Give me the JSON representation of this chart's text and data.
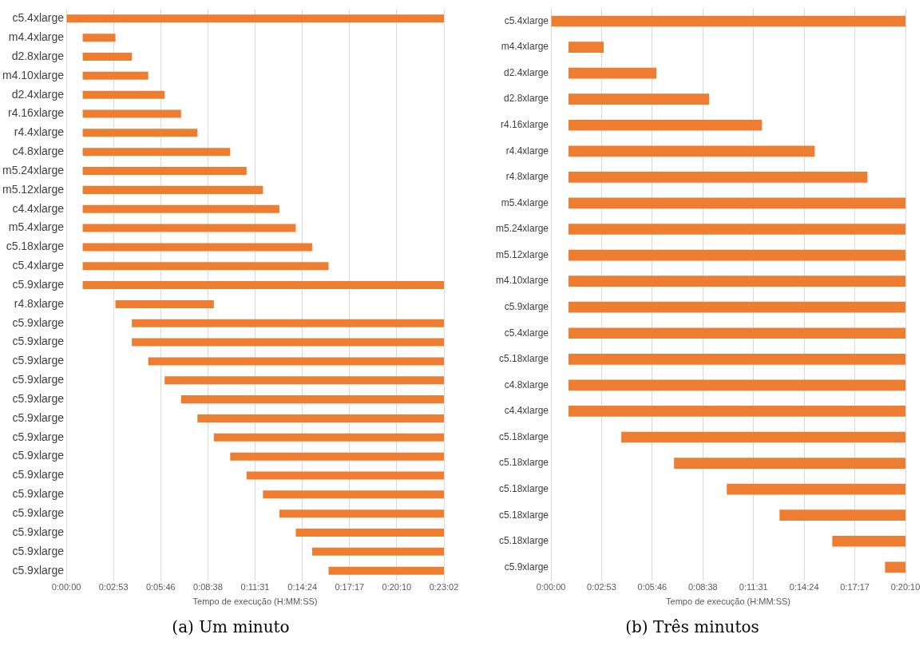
{
  "chart_data": [
    {
      "type": "bar",
      "orientation": "horizontal",
      "title": "(a) Um minuto",
      "xlabel": "Tempo de execução (H:MM:SS)",
      "color": "#ed7d31",
      "grid": "x",
      "categories": [
        "c5.4xlarge",
        "m4.4xlarge",
        "d2.8xlarge",
        "m4.10xlarge",
        "d2.4xlarge",
        "r4.16xlarge",
        "r4.4xlarge",
        "c4.8xlarge",
        "m5.24xlarge",
        "m5.12xlarge",
        "c4.4xlarge",
        "m5.4xlarge",
        "c5.18xlarge",
        "c5.4xlarge",
        "c5.9xlarge",
        "r4.8xlarge",
        "c5.9xlarge",
        "c5.9xlarge",
        "c5.9xlarge",
        "c5.9xlarge",
        "c5.9xlarge",
        "c5.9xlarge",
        "c5.9xlarge",
        "c5.9xlarge",
        "c5.9xlarge",
        "c5.9xlarge",
        "c5.9xlarge",
        "c5.9xlarge",
        "c5.9xlarge",
        "c5.9xlarge"
      ],
      "base": [
        0,
        60,
        60,
        60,
        60,
        60,
        60,
        60,
        60,
        60,
        60,
        60,
        60,
        60,
        60,
        180,
        240,
        240,
        300,
        360,
        420,
        480,
        540,
        600,
        660,
        720,
        780,
        840,
        900,
        960
      ],
      "values": [
        1382.4,
        120,
        180,
        240,
        300,
        360,
        420,
        540,
        600,
        660,
        720,
        780,
        840,
        900,
        1322.4,
        360,
        1142.4,
        1142.4,
        1082.4,
        1022.4,
        962.4,
        902.4,
        842.4,
        782.4,
        722.4,
        662.4,
        602.4,
        542.4,
        482.4,
        422.4
      ],
      "xlim": [
        0,
        1382.4
      ],
      "xticks": [
        {
          "value": 0,
          "label": "0:00:00"
        },
        {
          "value": 172.8,
          "label": "0:02:53"
        },
        {
          "value": 345.6,
          "label": "0:05:46"
        },
        {
          "value": 518.4,
          "label": "0:08:38"
        },
        {
          "value": 691.2,
          "label": "0:11:31"
        },
        {
          "value": 864,
          "label": "0:14:24"
        },
        {
          "value": 1036.8,
          "label": "0:17:17"
        },
        {
          "value": 1209.6,
          "label": "0:20:10"
        },
        {
          "value": 1382.4,
          "label": "0:23:02"
        }
      ]
    },
    {
      "type": "bar",
      "orientation": "horizontal",
      "title": "(b) Três minutos",
      "xlabel": "Tempo de execução (H:MM:SS)",
      "color": "#ed7d31",
      "grid": "x",
      "categories": [
        "c5.4xlarge",
        "m4.4xlarge",
        "d2.4xlarge",
        "d2.8xlarge",
        "r4.16xlarge",
        "r4.4xlarge",
        "r4.8xlarge",
        "m5.4xlarge",
        "m5.24xlarge",
        "m5.12xlarge",
        "m4.10xlarge",
        "c5.9xlarge",
        "c5.4xlarge",
        "c5.18xlarge",
        "c4.8xlarge",
        "c4.4xlarge",
        "c5.18xlarge",
        "c5.18xlarge",
        "c5.18xlarge",
        "c5.18xlarge",
        "c5.18xlarge",
        "c5.9xlarge"
      ],
      "base": [
        0,
        60,
        60,
        60,
        60,
        60,
        60,
        60,
        60,
        60,
        60,
        60,
        60,
        60,
        60,
        60,
        240,
        420,
        600,
        780,
        960,
        1140
      ],
      "values": [
        1209.6,
        120,
        300,
        480,
        660,
        840,
        1020,
        1149.6,
        1149.6,
        1149.6,
        1149.6,
        1149.6,
        1149.6,
        1149.6,
        1149.6,
        1149.6,
        969.6,
        789.6,
        609.6,
        429.6,
        249.6,
        69.6
      ],
      "xlim": [
        0,
        1209.6
      ],
      "xticks": [
        {
          "value": 0,
          "label": "0:00:00"
        },
        {
          "value": 172.8,
          "label": "0:02:53"
        },
        {
          "value": 345.6,
          "label": "0:05:46"
        },
        {
          "value": 518.4,
          "label": "0:08:38"
        },
        {
          "value": 691.2,
          "label": "0:11:31"
        },
        {
          "value": 864,
          "label": "0:14:24"
        },
        {
          "value": 1036.8,
          "label": "0:17:17"
        },
        {
          "value": 1209.6,
          "label": "0:20:10"
        }
      ]
    }
  ]
}
